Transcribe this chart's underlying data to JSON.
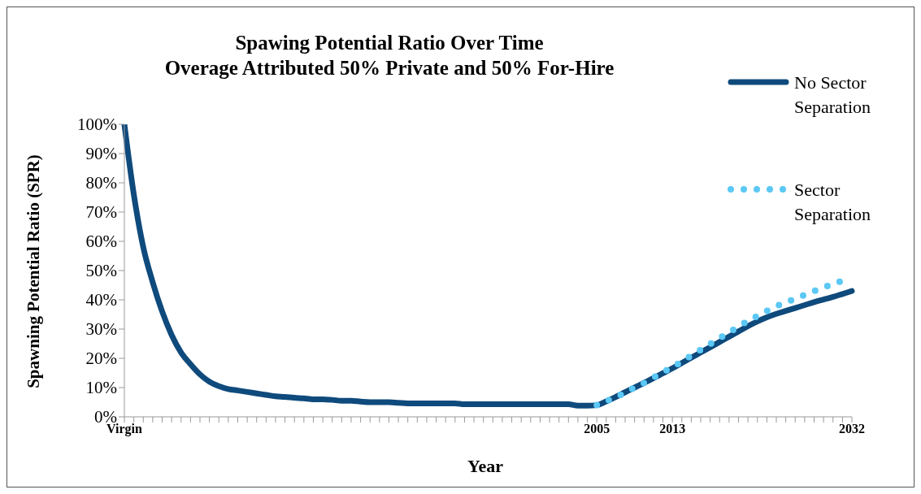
{
  "chart_data": {
    "type": "line",
    "title": "Spawing Potential Ratio Over Time",
    "subtitle": "Overage Attributed 50% Private and 50% For-Hire",
    "xlabel": "Year",
    "ylabel": "Spawning Potential Ratio (SPR)",
    "categories": [
      "Virgin",
      null,
      null,
      null,
      null,
      null,
      null,
      null,
      null,
      null,
      null,
      null,
      null,
      null,
      null,
      null,
      null,
      null,
      null,
      null,
      null,
      null,
      null,
      null,
      null,
      null,
      null,
      null,
      null,
      null,
      null,
      null,
      null,
      null,
      null,
      null,
      null,
      null,
      null,
      null,
      null,
      null,
      null,
      null,
      null,
      null,
      null,
      null,
      null,
      null,
      "2005",
      null,
      null,
      null,
      null,
      null,
      null,
      null,
      "2013",
      null,
      null,
      null,
      null,
      null,
      null,
      null,
      null,
      null,
      null,
      null,
      null,
      null,
      null,
      null,
      null,
      null,
      null,
      "2032"
    ],
    "series": [
      {
        "name": "No Sector Separation",
        "color": "#0f4a7c",
        "line_style": "solid",
        "values": [
          100,
          76,
          58,
          46,
          36,
          28,
          22,
          18,
          14.5,
          12,
          10.5,
          9.5,
          9,
          8.5,
          8,
          7.5,
          7,
          6.8,
          6.5,
          6.3,
          6,
          6,
          5.8,
          5.5,
          5.5,
          5.2,
          5,
          5,
          5,
          4.8,
          4.6,
          4.6,
          4.6,
          4.6,
          4.6,
          4.6,
          4.3,
          4.3,
          4.3,
          4.3,
          4.3,
          4.3,
          4.3,
          4.3,
          4.3,
          4.3,
          4.3,
          4.3,
          3.8,
          3.8,
          4,
          5.3,
          6.8,
          8.4,
          10,
          11.6,
          13.2,
          14.9,
          16.6,
          18.4,
          20.2,
          22,
          23.8,
          25.6,
          27.4,
          29.2,
          31,
          32.6,
          34,
          35.2,
          36.2,
          37.2,
          38.2,
          39.2,
          40.1,
          41,
          42,
          43
        ]
      },
      {
        "name": "Sector Separation",
        "color": "#5bc8f5",
        "line_style": "dotted",
        "values": [
          null,
          null,
          null,
          null,
          null,
          null,
          null,
          null,
          null,
          null,
          null,
          null,
          null,
          null,
          null,
          null,
          null,
          null,
          null,
          null,
          null,
          null,
          null,
          null,
          null,
          null,
          null,
          null,
          null,
          null,
          null,
          null,
          null,
          null,
          null,
          null,
          null,
          null,
          null,
          null,
          null,
          null,
          null,
          null,
          null,
          null,
          null,
          null,
          null,
          null,
          4,
          5.3,
          6.8,
          8.2,
          10,
          11.6,
          13.4,
          15.2,
          17,
          18.9,
          20.9,
          22.9,
          24.9,
          26.9,
          28.9,
          30.8,
          32.8,
          34.5,
          36.2,
          37.8,
          39.1,
          40.4,
          41.7,
          43,
          44.2,
          45.4,
          46.5,
          47.3
        ]
      }
    ],
    "ylim": [
      0,
      100
    ],
    "yticks": [
      {
        "value": 0,
        "label": "0%"
      },
      {
        "value": 10,
        "label": "10%"
      },
      {
        "value": 20,
        "label": "20%"
      },
      {
        "value": 30,
        "label": "30%"
      },
      {
        "value": 40,
        "label": "40%"
      },
      {
        "value": 50,
        "label": "50%"
      },
      {
        "value": 60,
        "label": "60%"
      },
      {
        "value": 70,
        "label": "70%"
      },
      {
        "value": 80,
        "label": "80%"
      },
      {
        "value": 90,
        "label": "90%"
      },
      {
        "value": 100,
        "label": "100%"
      }
    ],
    "legend": "top right"
  }
}
